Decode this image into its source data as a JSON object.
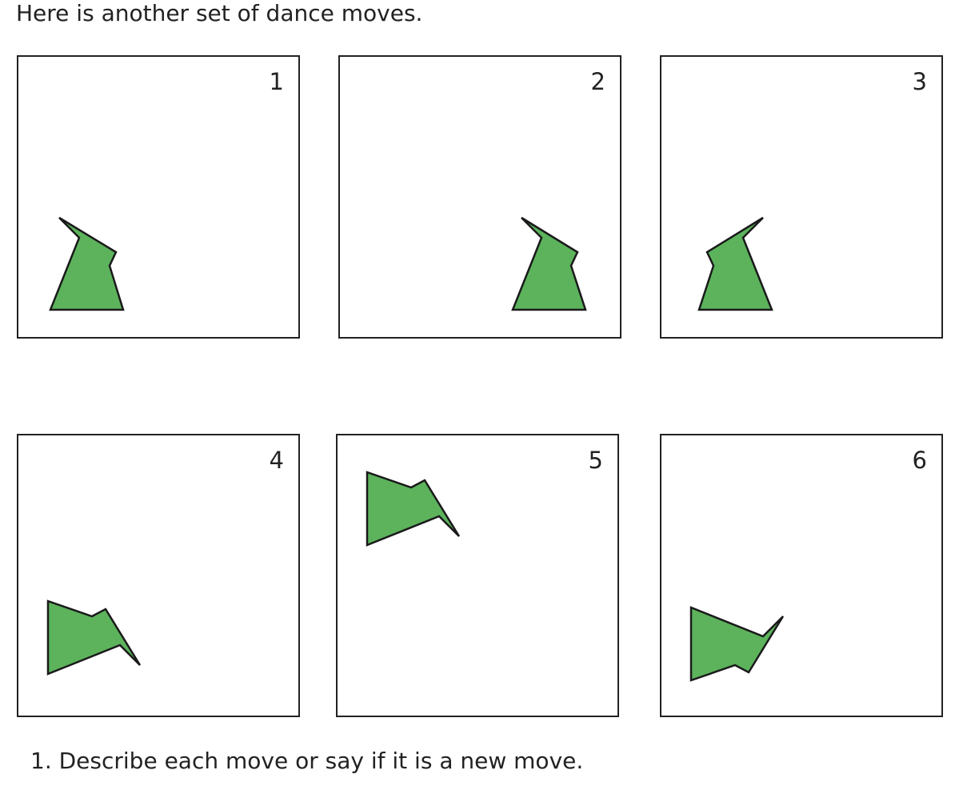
{
  "intro_text": "Here is another set of dance moves.",
  "panels": [
    {
      "number": "1"
    },
    {
      "number": "2"
    },
    {
      "number": "3"
    },
    {
      "number": "4"
    },
    {
      "number": "5"
    },
    {
      "number": "6"
    }
  ],
  "shape_color": "#5cb35c",
  "question_text": "1. Describe each move or say if it is a new move."
}
